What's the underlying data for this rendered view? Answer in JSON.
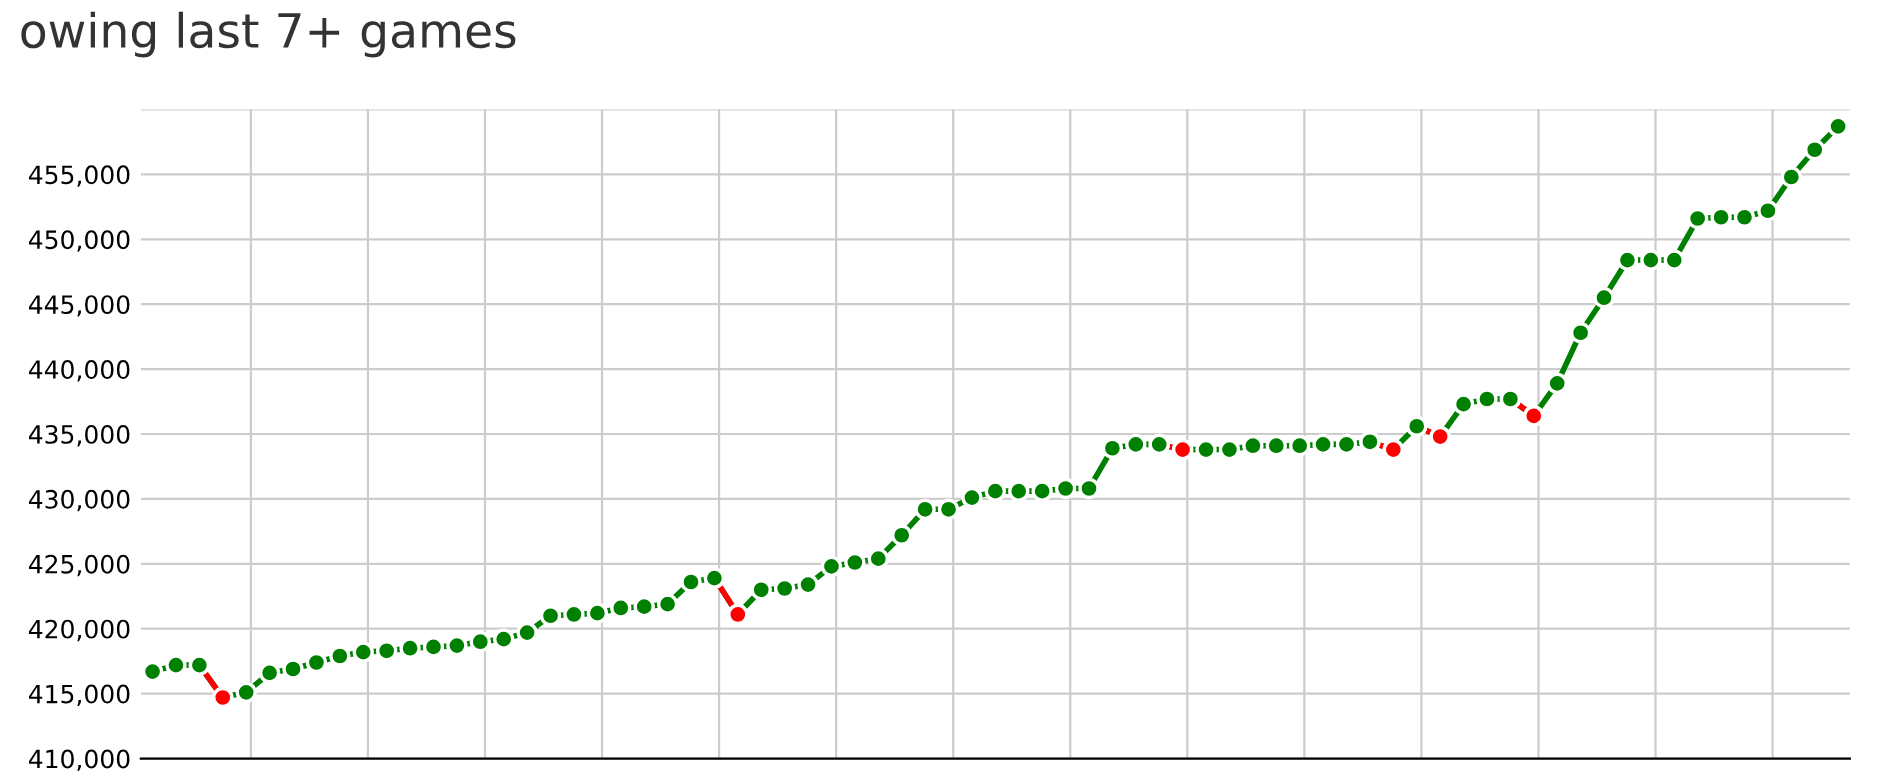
{
  "chart_data": {
    "type": "line",
    "title": "owing last 7+ games",
    "categories": [
      null,
      null,
      null,
      null,
      null,
      null,
      null,
      null,
      null,
      null,
      null,
      null,
      null,
      null,
      null,
      null,
      null,
      null,
      null,
      null,
      null,
      null,
      null,
      null,
      null,
      null,
      null,
      null,
      null,
      null,
      null,
      null,
      null,
      null,
      null,
      null,
      null,
      null,
      null,
      null,
      null,
      null,
      null,
      null,
      null,
      null,
      null,
      null,
      null,
      null,
      null,
      null,
      null,
      null,
      null,
      null,
      null,
      null,
      null,
      null,
      null,
      null,
      null,
      null,
      null,
      null,
      null,
      null,
      null,
      null,
      null,
      null,
      null
    ],
    "series": [
      {
        "color": "#008000",
        "colors": [
          "#008000",
          "#008000",
          "#008000",
          "#ff0000",
          "#008000",
          "#008000",
          "#008000",
          "#008000",
          "#008000",
          "#008000",
          "#008000",
          "#008000",
          "#008000",
          "#008000",
          "#008000",
          "#008000",
          "#008000",
          "#008000",
          "#008000",
          "#008000",
          "#008000",
          "#008000",
          "#008000",
          "#008000",
          "#008000",
          "#ff0000",
          "#008000",
          "#008000",
          "#008000",
          "#008000",
          "#008000",
          "#008000",
          "#008000",
          "#008000",
          "#008000",
          "#008000",
          "#008000",
          "#008000",
          "#008000",
          "#008000",
          "#008000",
          "#008000",
          "#008000",
          "#008000",
          "#ff0000",
          "#008000",
          "#008000",
          "#008000",
          "#008000",
          "#008000",
          "#008000",
          "#008000",
          "#008000",
          "#ff0000",
          "#008000",
          "#ff0000",
          "#008000",
          "#008000",
          "#008000",
          "#ff0000",
          "#008000",
          "#008000",
          "#008000",
          "#008000",
          "#008000",
          "#008000",
          "#008000",
          "#008000",
          "#008000",
          "#008000",
          "#008000",
          "#008000",
          "#008000"
        ],
        "values": [
          416700,
          417200,
          417200,
          414700,
          415100,
          416600,
          416900,
          417400,
          417900,
          418200,
          418300,
          418500,
          418600,
          418700,
          419000,
          419200,
          419700,
          421000,
          421100,
          421200,
          421600,
          421700,
          421900,
          423600,
          423900,
          421100,
          423000,
          423100,
          423400,
          424800,
          425100,
          425400,
          427200,
          429200,
          429200,
          430100,
          430600,
          430600,
          430600,
          430800,
          430800,
          433900,
          434200,
          434200,
          433800,
          433800,
          433800,
          434100,
          434100,
          434100,
          434200,
          434200,
          434400,
          433800,
          435600,
          434800,
          437300,
          437700,
          437700,
          436400,
          438900,
          442800,
          445500,
          448400,
          448400,
          448400,
          451600,
          451700,
          451700,
          452200,
          454800,
          456900,
          458700
        ]
      },
      {
        "color": "#ff0000",
        "values": [
          null,
          null,
          417200,
          414700,
          null,
          null,
          null,
          null,
          null,
          null,
          null,
          null,
          null,
          null,
          null,
          null,
          null,
          null,
          null,
          null,
          null,
          null,
          null,
          null,
          null,
          null,
          null,
          null,
          null,
          null,
          null,
          null,
          null,
          null,
          null,
          null,
          null,
          null,
          null,
          null,
          null,
          null,
          null,
          null,
          null,
          null,
          null,
          null,
          null,
          null,
          null,
          null,
          null,
          null,
          null,
          null,
          null,
          null,
          null,
          null,
          null,
          null,
          null,
          null,
          null,
          null,
          null,
          null,
          null,
          null,
          null,
          null,
          null
        ]
      },
      {
        "color": "#ff0000",
        "values": [
          null,
          null,
          null,
          null,
          null,
          null,
          null,
          null,
          null,
          null,
          null,
          null,
          null,
          null,
          null,
          null,
          null,
          null,
          null,
          null,
          null,
          null,
          null,
          null,
          423900,
          421100,
          null,
          null,
          null,
          null,
          null,
          null,
          null,
          null,
          null,
          null,
          null,
          null,
          null,
          null,
          null,
          null,
          null,
          null,
          null,
          null,
          null,
          null,
          null,
          null,
          null,
          null,
          null,
          null,
          null,
          null,
          null,
          null,
          null,
          null,
          null,
          null,
          null,
          null,
          null,
          null,
          null,
          null,
          null,
          null,
          null,
          null,
          null
        ]
      },
      {
        "color": "#ff0000",
        "values": [
          null,
          null,
          null,
          null,
          null,
          null,
          null,
          null,
          null,
          null,
          null,
          null,
          null,
          null,
          null,
          null,
          null,
          null,
          null,
          null,
          null,
          null,
          null,
          null,
          null,
          null,
          null,
          null,
          null,
          null,
          null,
          null,
          null,
          null,
          null,
          null,
          null,
          null,
          null,
          null,
          null,
          null,
          null,
          434200,
          433800,
          null,
          null,
          null,
          null,
          null,
          null,
          null,
          null,
          null,
          null,
          null,
          null,
          null,
          null,
          null,
          null,
          null,
          null,
          null,
          null,
          null,
          null,
          null,
          null,
          null,
          null,
          null,
          null
        ]
      },
      {
        "color": "#ff0000",
        "values": [
          null,
          null,
          null,
          null,
          null,
          null,
          null,
          null,
          null,
          null,
          null,
          null,
          null,
          null,
          null,
          null,
          null,
          null,
          null,
          null,
          null,
          null,
          null,
          null,
          null,
          null,
          null,
          null,
          null,
          null,
          null,
          null,
          null,
          null,
          null,
          null,
          null,
          null,
          null,
          null,
          null,
          null,
          null,
          null,
          null,
          null,
          null,
          null,
          null,
          null,
          null,
          null,
          434400,
          433800,
          null,
          null,
          null,
          null,
          null,
          null,
          null,
          null,
          null,
          null,
          null,
          null,
          null,
          null,
          null,
          null,
          null,
          null,
          null
        ]
      },
      {
        "color": "#ff0000",
        "values": [
          null,
          null,
          null,
          null,
          null,
          null,
          null,
          null,
          null,
          null,
          null,
          null,
          null,
          null,
          null,
          null,
          null,
          null,
          null,
          null,
          null,
          null,
          null,
          null,
          null,
          null,
          null,
          null,
          null,
          null,
          null,
          null,
          null,
          null,
          null,
          null,
          null,
          null,
          null,
          null,
          null,
          null,
          null,
          null,
          null,
          null,
          null,
          null,
          null,
          null,
          null,
          null,
          null,
          null,
          435600,
          434800,
          null,
          null,
          null,
          null,
          null,
          null,
          null,
          null,
          null,
          null,
          null,
          null,
          null,
          null,
          null,
          null,
          null
        ]
      },
      {
        "color": "#ff0000",
        "values": [
          null,
          null,
          null,
          null,
          null,
          null,
          null,
          null,
          null,
          null,
          null,
          null,
          null,
          null,
          null,
          null,
          null,
          null,
          null,
          null,
          null,
          null,
          null,
          null,
          null,
          null,
          null,
          null,
          null,
          null,
          null,
          null,
          null,
          null,
          null,
          null,
          null,
          null,
          null,
          null,
          null,
          null,
          null,
          null,
          null,
          null,
          null,
          null,
          null,
          null,
          null,
          null,
          null,
          null,
          null,
          null,
          null,
          null,
          437700,
          436400,
          null,
          null,
          null,
          null,
          null,
          null,
          null,
          null,
          null,
          null,
          null,
          null,
          null
        ]
      }
    ],
    "ylim": [
      410000,
      460000
    ],
    "yticks": [
      {
        "value": 410000,
        "label": "410,000"
      },
      {
        "value": 415000,
        "label": "415,000"
      },
      {
        "value": 420000,
        "label": "420,000"
      },
      {
        "value": 425000,
        "label": "425,000"
      },
      {
        "value": 430000,
        "label": "430,000"
      },
      {
        "value": 435000,
        "label": "435,000"
      },
      {
        "value": 440000,
        "label": "440,000"
      },
      {
        "value": 445000,
        "label": "445,000"
      },
      {
        "value": 450000,
        "label": "450,000"
      },
      {
        "value": 455000,
        "label": "455,000"
      },
      {
        "value": 460000,
        "label": null
      }
    ],
    "grid": true,
    "marker": "circle",
    "line_style": "solid"
  }
}
